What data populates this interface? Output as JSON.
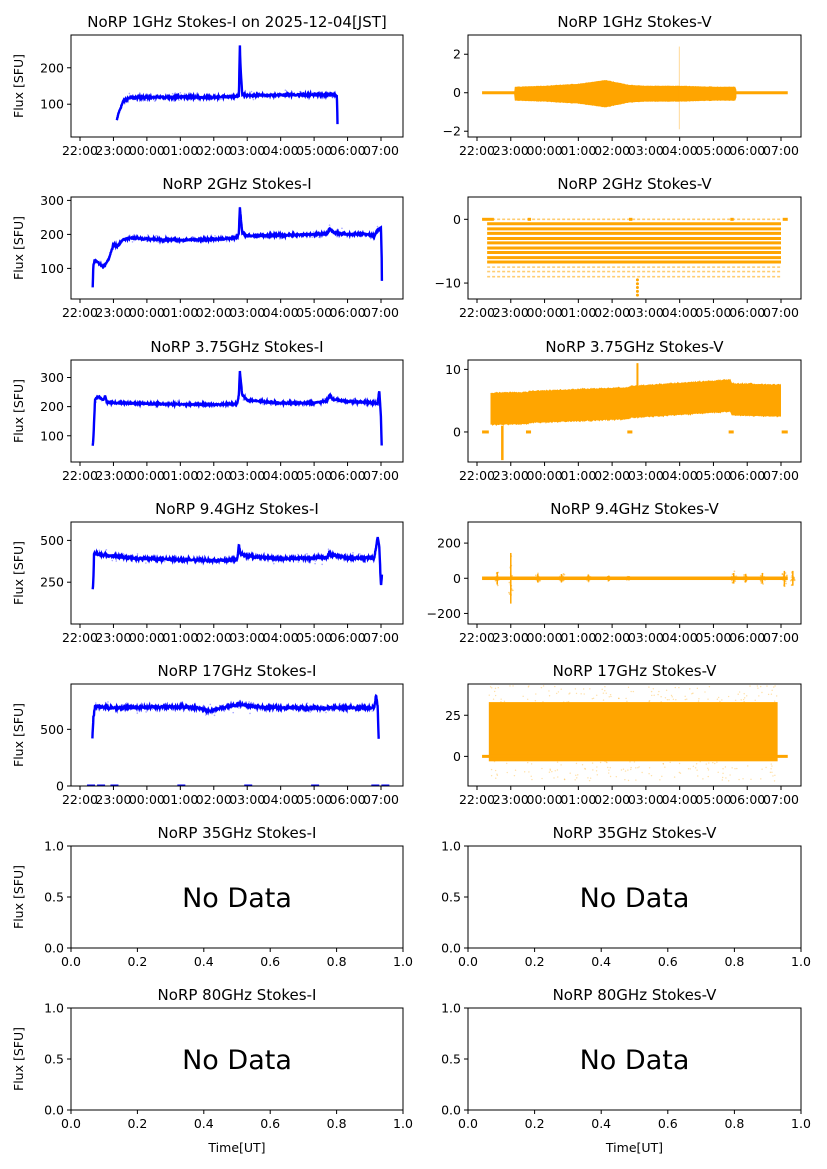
{
  "figure": {
    "xlabel": "Time[UT]",
    "ylabel": "Flux [SFU]",
    "colors": {
      "stokes_i": "#0000ff",
      "stokes_v": "#ffa500",
      "axis": "#000000"
    }
  },
  "chart_data": [
    {
      "type": "scatter",
      "title": "NoRP 1GHz Stokes-I on 2025-12-04[JST]",
      "ylabel": "Flux [SFU]",
      "xlabel": "",
      "xticks": [
        "22:00",
        "23:00",
        "00:00",
        "01:00",
        "02:00",
        "03:00",
        "04:00",
        "05:00",
        "06:00",
        "07:00"
      ],
      "xlim_hours": [
        21.9,
        31.6
      ],
      "ylim": [
        10,
        290
      ],
      "yticks": [
        100,
        200
      ],
      "series": [
        {
          "name": "Stokes-I",
          "x_hours": [
            23.1,
            23.15,
            23.3,
            23.5,
            24,
            25,
            26,
            26.5,
            26.75,
            26.78,
            26.8,
            26.85,
            27,
            28,
            29,
            29.3,
            29.5,
            29.68,
            29.7
          ],
          "y": [
            55,
            75,
            110,
            118,
            119,
            120,
            119,
            121,
            122,
            260,
            200,
            128,
            124,
            125,
            126,
            125,
            128,
            124,
            45
          ],
          "spread": 4
        }
      ]
    },
    {
      "type": "scatter",
      "title": "NoRP 1GHz Stokes-V",
      "ylabel": "",
      "xlabel": "",
      "xticks": [
        "22:00",
        "23:00",
        "00:00",
        "01:00",
        "02:00",
        "03:00",
        "04:00",
        "05:00",
        "06:00",
        "07:00"
      ],
      "xlim_hours": [
        21.7,
        31.6
      ],
      "ylim": [
        -2.3,
        3.0
      ],
      "yticks": [
        -2,
        0,
        2
      ],
      "series": [
        {
          "name": "Stokes-V",
          "x_hours": [
            22.15,
            23.1,
            23.11,
            24,
            25,
            25.8,
            26.5,
            27,
            28,
            29,
            29.65,
            29.7,
            31.2
          ],
          "y": [
            0,
            0,
            0,
            0,
            0,
            0,
            0,
            0,
            0,
            0,
            0,
            0,
            0
          ],
          "band": [
            0,
            0,
            0.3,
            0.35,
            0.45,
            0.65,
            0.4,
            0.35,
            0.35,
            0.3,
            0.3,
            0,
            0
          ]
        }
      ]
    },
    {
      "type": "scatter",
      "title": "NoRP 2GHz Stokes-I",
      "ylabel": "Flux [SFU]",
      "xlabel": "",
      "xticks": [
        "22:00",
        "23:00",
        "00:00",
        "01:00",
        "02:00",
        "03:00",
        "04:00",
        "05:00",
        "06:00",
        "07:00"
      ],
      "xlim_hours": [
        21.7,
        31.6
      ],
      "ylim": [
        10,
        310
      ],
      "yticks": [
        100,
        200,
        300
      ],
      "series": [
        {
          "name": "Stokes-I",
          "x_hours": [
            22.38,
            22.4,
            22.45,
            22.6,
            22.7,
            22.85,
            23.0,
            23.1,
            23.3,
            23.5,
            24,
            25,
            26,
            26.7,
            26.75,
            26.78,
            26.85,
            27,
            28,
            29,
            29.4,
            29.45,
            29.6,
            30,
            30.5,
            30.8,
            30.9,
            31.0,
            31.02,
            31.03
          ],
          "y": [
            45,
            110,
            125,
            112,
            105,
            125,
            170,
            165,
            185,
            190,
            186,
            183,
            186,
            190,
            205,
            280,
            205,
            195,
            198,
            200,
            202,
            218,
            205,
            200,
            202,
            195,
            215,
            220,
            130,
            45
          ],
          "spread": 4
        }
      ]
    },
    {
      "type": "scatter",
      "title": "NoRP 2GHz Stokes-V",
      "ylabel": "",
      "xlabel": "",
      "xticks": [
        "22:00",
        "23:00",
        "00:00",
        "01:00",
        "02:00",
        "03:00",
        "04:00",
        "05:00",
        "06:00",
        "07:00"
      ],
      "xlim_hours": [
        21.7,
        31.6
      ],
      "ylim": [
        -12.5,
        3.5
      ],
      "yticks": [
        -10,
        0
      ],
      "series": [
        {
          "name": "Stokes-V",
          "levels": [
            0,
            -0.7,
            -1.5,
            -2.2,
            -3,
            -3.7,
            -4.5,
            -5.2,
            -6,
            -6.7,
            -7.5,
            -8.2,
            -9
          ],
          "x_start_hours": 22.3,
          "x_end_hours": 31.0
        }
      ]
    },
    {
      "type": "scatter",
      "title": "NoRP 3.75GHz Stokes-I",
      "ylabel": "Flux [SFU]",
      "xlabel": "",
      "xticks": [
        "22:00",
        "23:00",
        "00:00",
        "01:00",
        "02:00",
        "03:00",
        "04:00",
        "05:00",
        "06:00",
        "07:00"
      ],
      "xlim_hours": [
        21.7,
        31.6
      ],
      "ylim": [
        10,
        360
      ],
      "yticks": [
        100,
        200,
        300
      ],
      "series": [
        {
          "name": "Stokes-I",
          "x_hours": [
            22.38,
            22.4,
            22.45,
            22.55,
            22.7,
            22.75,
            22.8,
            23,
            24,
            25,
            26,
            26.7,
            26.75,
            26.78,
            26.85,
            27,
            28,
            29,
            29.4,
            29.45,
            29.55,
            30,
            30.5,
            30.9,
            30.95,
            31.0,
            31.02
          ],
          "y": [
            65,
            90,
            225,
            235,
            222,
            238,
            215,
            213,
            210,
            208,
            207,
            210,
            240,
            320,
            240,
            222,
            212,
            213,
            220,
            240,
            225,
            218,
            215,
            212,
            255,
            160,
            65
          ],
          "spread": 4
        }
      ]
    },
    {
      "type": "scatter",
      "title": "NoRP 3.75GHz Stokes-V",
      "ylabel": "",
      "xlabel": "",
      "xticks": [
        "22:00",
        "23:00",
        "00:00",
        "01:00",
        "02:00",
        "03:00",
        "04:00",
        "05:00",
        "06:00",
        "07:00"
      ],
      "xlim_hours": [
        21.7,
        31.6
      ],
      "ylim": [
        -4.8,
        11.5
      ],
      "yticks": [
        0,
        10
      ],
      "series": [
        {
          "name": "Stokes-V",
          "x_hours": [
            22.3,
            22.4,
            23.5,
            23.55,
            26.5,
            26.55,
            29.5,
            29.55,
            31.0
          ],
          "y": [
            3.5,
            3.7,
            3.8,
            4.0,
            4.6,
            4.8,
            5.8,
            5.2,
            5.0
          ],
          "band": 2.5
        }
      ]
    },
    {
      "type": "scatter",
      "title": "NoRP 9.4GHz Stokes-I",
      "ylabel": "Flux [SFU]",
      "xlabel": "",
      "xticks": [
        "22:00",
        "23:00",
        "00:00",
        "01:00",
        "02:00",
        "03:00",
        "04:00",
        "05:00",
        "06:00",
        "07:00"
      ],
      "xlim_hours": [
        21.7,
        31.6
      ],
      "ylim": [
        0,
        610
      ],
      "yticks": [
        250,
        500
      ],
      "series": [
        {
          "name": "Stokes-I",
          "x_hours": [
            22.38,
            22.4,
            22.42,
            22.6,
            23,
            23.5,
            24,
            25,
            26,
            26.7,
            26.75,
            26.8,
            27,
            28,
            29,
            29.4,
            29.45,
            30,
            30.8,
            30.9,
            30.95,
            31.0,
            31.03
          ],
          "y": [
            205,
            260,
            420,
            415,
            405,
            395,
            390,
            385,
            380,
            385,
            470,
            420,
            405,
            390,
            395,
            400,
            420,
            395,
            395,
            520,
            460,
            220,
            300
          ],
          "spread": 12
        }
      ]
    },
    {
      "type": "scatter",
      "title": "NoRP 9.4GHz Stokes-V",
      "ylabel": "",
      "xlabel": "",
      "xticks": [
        "22:00",
        "23:00",
        "00:00",
        "01:00",
        "02:00",
        "03:00",
        "04:00",
        "05:00",
        "06:00",
        "07:00"
      ],
      "xlim_hours": [
        21.7,
        31.6
      ],
      "ylim": [
        -260,
        320
      ],
      "yticks": [
        -200,
        0,
        200
      ],
      "series": [
        {
          "name": "Stokes-V",
          "bursts_hours": [
            22.6,
            23.0,
            23.8,
            24.5,
            25.3,
            25.9,
            26.5,
            29.6,
            29.95,
            30.45,
            31.1,
            31.35,
            31.8
          ],
          "burst_amplitude": [
            60,
            240,
            40,
            40,
            30,
            25,
            20,
            50,
            40,
            50,
            70,
            70,
            80
          ]
        }
      ]
    },
    {
      "type": "scatter",
      "title": "NoRP 17GHz Stokes-I",
      "ylabel": "Flux [SFU]",
      "xlabel": "",
      "xticks": [
        "22:00",
        "23:00",
        "00:00",
        "01:00",
        "02:00",
        "03:00",
        "04:00",
        "05:00",
        "06:00",
        "07:00"
      ],
      "xlim_hours": [
        21.7,
        31.6
      ],
      "ylim": [
        0,
        900
      ],
      "yticks": [
        0,
        500
      ],
      "series": [
        {
          "name": "Stokes-I",
          "x_hours": [
            22.37,
            22.4,
            22.45,
            23,
            24,
            25,
            25.5,
            25.85,
            26.2,
            26.8,
            27.2,
            28,
            29,
            30,
            30.8,
            30.85,
            30.9,
            30.93
          ],
          "y": [
            420,
            600,
            700,
            690,
            695,
            700,
            690,
            660,
            690,
            720,
            700,
            690,
            690,
            690,
            690,
            800,
            700,
            420
          ],
          "spread": 18
        }
      ]
    },
    {
      "type": "scatter",
      "title": "NoRP 17GHz Stokes-V",
      "ylabel": "",
      "xlabel": "",
      "xticks": [
        "22:00",
        "23:00",
        "00:00",
        "01:00",
        "02:00",
        "03:00",
        "04:00",
        "05:00",
        "06:00",
        "07:00"
      ],
      "xlim_hours": [
        21.7,
        31.6
      ],
      "ylim": [
        -18,
        44
      ],
      "yticks": [
        0,
        25
      ],
      "series": [
        {
          "name": "Stokes-V",
          "x_start_hours": 22.35,
          "x_end_hours": 30.9,
          "center": 15,
          "band": 18
        }
      ]
    },
    {
      "type": "empty",
      "title": "NoRP 35GHz Stokes-I",
      "ylabel": "Flux [SFU]",
      "xlabel": "",
      "message": "No Data",
      "xticks": [
        "0.0",
        "0.2",
        "0.4",
        "0.6",
        "0.8",
        "1.0"
      ],
      "yticks": [
        "0.0",
        "0.5",
        "1.0"
      ],
      "xlim": [
        0,
        1
      ],
      "ylim": [
        0,
        1
      ]
    },
    {
      "type": "empty",
      "title": "NoRP 35GHz Stokes-V",
      "ylabel": "",
      "xlabel": "",
      "message": "No Data",
      "xticks": [
        "0.0",
        "0.2",
        "0.4",
        "0.6",
        "0.8",
        "1.0"
      ],
      "yticks": [
        "0.0",
        "0.5",
        "1.0"
      ],
      "xlim": [
        0,
        1
      ],
      "ylim": [
        0,
        1
      ]
    },
    {
      "type": "empty",
      "title": "NoRP 80GHz Stokes-I",
      "ylabel": "Flux [SFU]",
      "xlabel": "Time[UT]",
      "message": "No Data",
      "xticks": [
        "0.0",
        "0.2",
        "0.4",
        "0.6",
        "0.8",
        "1.0"
      ],
      "yticks": [
        "0.0",
        "0.5",
        "1.0"
      ],
      "xlim": [
        0,
        1
      ],
      "ylim": [
        0,
        1
      ]
    },
    {
      "type": "empty",
      "title": "NoRP 80GHz Stokes-V",
      "ylabel": "",
      "xlabel": "Time[UT]",
      "message": "No Data",
      "xticks": [
        "0.0",
        "0.2",
        "0.4",
        "0.6",
        "0.8",
        "1.0"
      ],
      "yticks": [
        "0.0",
        "0.5",
        "1.0"
      ],
      "xlim": [
        0,
        1
      ],
      "ylim": [
        0,
        1
      ]
    }
  ]
}
